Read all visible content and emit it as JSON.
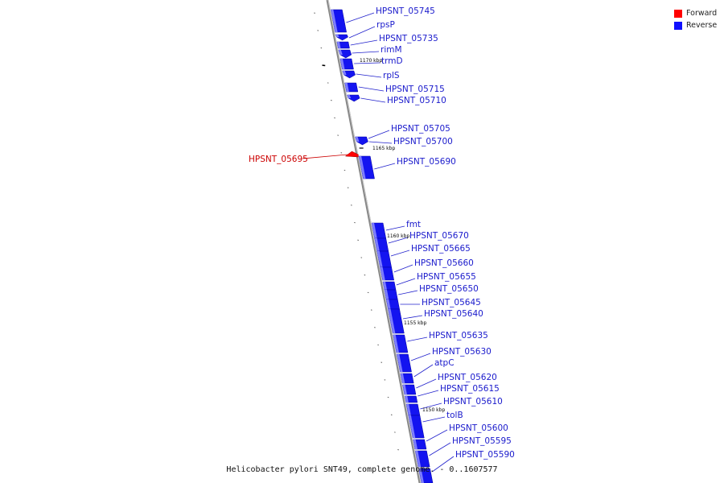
{
  "legend": {
    "forward_label": "Forward",
    "reverse_label": "Reverse",
    "forward_color": "#ff0000",
    "reverse_color": "#1010ff"
  },
  "caption": "Helicobacter pylori SNT49, complete genome. - 0..1607577",
  "ticks": [
    "1170 kbp",
    "1165 kbp",
    "1160 kbp",
    "1155 kbp",
    "1150 kbp"
  ],
  "genes_reverse": [
    "HPSNT_05745",
    "rpsP",
    "HPSNT_05735",
    "rimM",
    "trmD",
    "rplS",
    "HPSNT_05715",
    "HPSNT_05710",
    "HPSNT_05705",
    "HPSNT_05700",
    "HPSNT_05690",
    "fmt",
    "HPSNT_05670",
    "HPSNT_05665",
    "HPSNT_05660",
    "HPSNT_05655",
    "HPSNT_05650",
    "HPSNT_05645",
    "HPSNT_05640",
    "HPSNT_05635",
    "HPSNT_05630",
    "atpC",
    "HPSNT_05620",
    "HPSNT_05615",
    "HPSNT_05610",
    "tolB",
    "HPSNT_05600",
    "HPSNT_05595",
    "HPSNT_05590"
  ],
  "genes_forward": [
    "HPSNT_05695"
  ]
}
